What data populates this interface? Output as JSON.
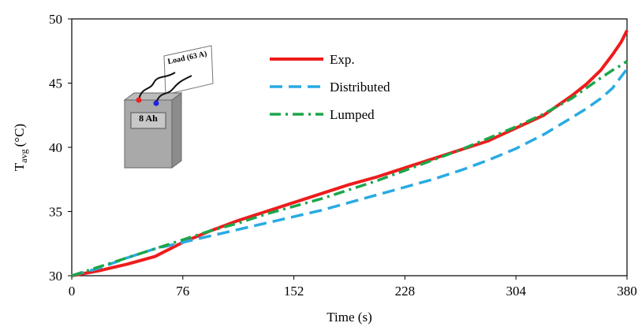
{
  "chart_data": {
    "type": "line",
    "xlabel": "Time (s)",
    "ylabel": {
      "main": "T",
      "sub": "avg",
      "unit": "(°C)"
    },
    "x": [
      0,
      19,
      38,
      57,
      76,
      95,
      114,
      133,
      152,
      171,
      190,
      209,
      228,
      247,
      266,
      285,
      304,
      323,
      342,
      352,
      362,
      370,
      376,
      380
    ],
    "series": [
      {
        "name": "Exp.",
        "color": "#ee1c1c",
        "dash": "solid",
        "values": [
          30,
          30.4,
          30.9,
          31.5,
          32.6,
          33.5,
          34.3,
          35.0,
          35.7,
          36.4,
          37.1,
          37.7,
          38.4,
          39.1,
          39.8,
          40.5,
          41.5,
          42.5,
          44.0,
          44.9,
          46.0,
          47.2,
          48.2,
          49.1
        ]
      },
      {
        "name": "Distributed",
        "color": "#29abe2",
        "dash": "dashed",
        "values": [
          30,
          30.6,
          31.4,
          32.1,
          32.6,
          33.1,
          33.6,
          34.1,
          34.6,
          35.1,
          35.7,
          36.3,
          36.9,
          37.5,
          38.2,
          39.0,
          39.9,
          41.0,
          42.3,
          43.0,
          43.8,
          44.6,
          45.5,
          46.1
        ]
      },
      {
        "name": "Lumped",
        "color": "#1aa64a",
        "dash": "dashdot",
        "values": [
          30,
          30.7,
          31.4,
          32.1,
          32.8,
          33.5,
          34.1,
          34.8,
          35.4,
          36.0,
          36.7,
          37.4,
          38.2,
          39.0,
          39.8,
          40.7,
          41.6,
          42.6,
          43.8,
          44.6,
          45.4,
          46.0,
          46.4,
          46.7
        ]
      }
    ],
    "xlim": [
      0,
      380
    ],
    "xticks": [
      0,
      76,
      152,
      228,
      304,
      380
    ],
    "ylim": [
      30,
      50
    ],
    "yticks": [
      30,
      35,
      40,
      45,
      50
    ],
    "annotations": [
      "Load (63 A)",
      "8 Ah"
    ]
  }
}
